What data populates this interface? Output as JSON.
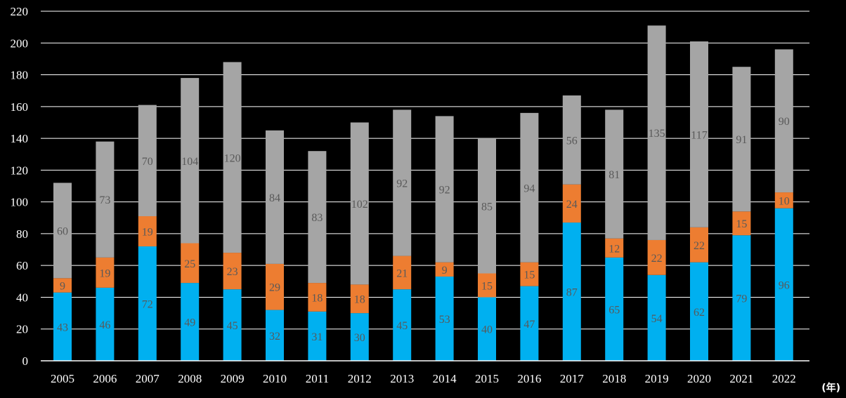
{
  "chart_data": {
    "type": "bar",
    "stacked": true,
    "categories": [
      "2005",
      "2006",
      "2007",
      "2008",
      "2009",
      "2010",
      "2011",
      "2012",
      "2013",
      "2014",
      "2015",
      "2016",
      "2017",
      "2018",
      "2019",
      "2020",
      "2021",
      "2022"
    ],
    "series": [
      {
        "color": "#00b0f0",
        "values": [
          43,
          46,
          72,
          49,
          45,
          32,
          31,
          30,
          45,
          53,
          40,
          47,
          87,
          65,
          54,
          62,
          79,
          96
        ]
      },
      {
        "color": "#ed7d31",
        "values": [
          9,
          19,
          19,
          25,
          23,
          29,
          18,
          18,
          21,
          9,
          15,
          15,
          24,
          12,
          22,
          22,
          15,
          10
        ]
      },
      {
        "color": "#a5a5a5",
        "values": [
          60,
          73,
          70,
          104,
          120,
          84,
          83,
          102,
          92,
          92,
          85,
          94,
          56,
          81,
          135,
          117,
          91,
          90
        ]
      }
    ],
    "ylim": [
      0,
      220
    ],
    "yticks": [
      0,
      20,
      40,
      60,
      80,
      100,
      120,
      140,
      160,
      180,
      200,
      220
    ],
    "x_unit": "(年)",
    "grid": true,
    "data_labels": true,
    "background": "#000000",
    "axis_text_color": "#ffffff",
    "label_color": "#595959"
  }
}
